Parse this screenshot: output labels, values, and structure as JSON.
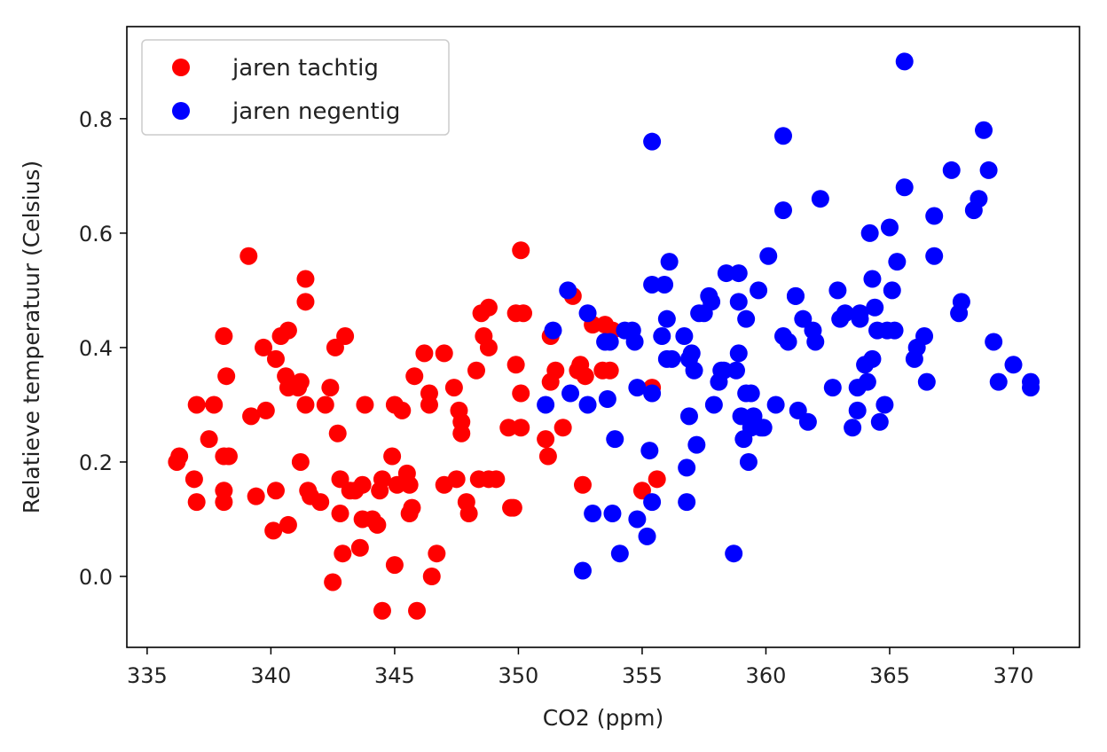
{
  "chart_data": {
    "type": "scatter",
    "title": "",
    "xlabel": "CO2 (ppm)",
    "ylabel": "Relatieve temperatuur (Celsius)",
    "xlim": [
      334.18,
      372.67
    ],
    "ylim": [
      -0.124,
      0.961
    ],
    "xticks": [
      335,
      340,
      345,
      350,
      355,
      360,
      365,
      370
    ],
    "xtick_labels": [
      "335",
      "340",
      "345",
      "350",
      "355",
      "360",
      "365",
      "370"
    ],
    "yticks": [
      0.0,
      0.2,
      0.4,
      0.6,
      0.8
    ],
    "ytick_labels": [
      "0.0",
      "0.2",
      "0.4",
      "0.6",
      "0.8"
    ],
    "grid": false,
    "legend_position": "top-left",
    "series": [
      {
        "name": "jaren tachtig",
        "color": "#ff0000",
        "points": [
          [
            336.2,
            0.2
          ],
          [
            336.3,
            0.21
          ],
          [
            336.9,
            0.17
          ],
          [
            337.0,
            0.13
          ],
          [
            337.0,
            0.3
          ],
          [
            337.7,
            0.3
          ],
          [
            337.5,
            0.24
          ],
          [
            338.1,
            0.42
          ],
          [
            338.2,
            0.35
          ],
          [
            338.1,
            0.21
          ],
          [
            338.3,
            0.21
          ],
          [
            338.1,
            0.15
          ],
          [
            338.1,
            0.13
          ],
          [
            339.1,
            0.56
          ],
          [
            339.2,
            0.28
          ],
          [
            339.4,
            0.14
          ],
          [
            339.7,
            0.4
          ],
          [
            339.8,
            0.29
          ],
          [
            340.1,
            0.08
          ],
          [
            340.2,
            0.15
          ],
          [
            340.2,
            0.38
          ],
          [
            340.4,
            0.42
          ],
          [
            340.6,
            0.35
          ],
          [
            340.7,
            0.33
          ],
          [
            340.7,
            0.09
          ],
          [
            340.7,
            0.43
          ],
          [
            341.1,
            0.33
          ],
          [
            341.2,
            0.2
          ],
          [
            341.2,
            0.34
          ],
          [
            341.4,
            0.52
          ],
          [
            341.4,
            0.48
          ],
          [
            341.4,
            0.3
          ],
          [
            341.5,
            0.15
          ],
          [
            341.6,
            0.14
          ],
          [
            342.0,
            0.13
          ],
          [
            342.2,
            0.3
          ],
          [
            342.4,
            0.33
          ],
          [
            342.6,
            0.4
          ],
          [
            342.7,
            0.25
          ],
          [
            342.8,
            0.17
          ],
          [
            343.0,
            0.42
          ],
          [
            342.8,
            0.11
          ],
          [
            342.9,
            0.04
          ],
          [
            342.5,
            -0.01
          ],
          [
            343.2,
            0.15
          ],
          [
            343.4,
            0.15
          ],
          [
            343.6,
            0.05
          ],
          [
            343.7,
            0.16
          ],
          [
            343.7,
            0.1
          ],
          [
            343.8,
            0.3
          ],
          [
            344.1,
            0.1
          ],
          [
            344.3,
            0.09
          ],
          [
            344.4,
            0.15
          ],
          [
            344.5,
            0.17
          ],
          [
            344.5,
            -0.06
          ],
          [
            344.9,
            0.21
          ],
          [
            345.0,
            0.3
          ],
          [
            345.0,
            0.02
          ],
          [
            345.1,
            0.16
          ],
          [
            345.3,
            0.29
          ],
          [
            345.5,
            0.18
          ],
          [
            345.6,
            0.16
          ],
          [
            345.6,
            0.11
          ],
          [
            345.8,
            0.35
          ],
          [
            345.7,
            0.12
          ],
          [
            345.9,
            -0.06
          ],
          [
            346.2,
            0.39
          ],
          [
            346.4,
            0.32
          ],
          [
            346.4,
            0.3
          ],
          [
            346.5,
            0.0
          ],
          [
            346.7,
            0.04
          ],
          [
            347.0,
            0.39
          ],
          [
            347.0,
            0.16
          ],
          [
            347.4,
            0.33
          ],
          [
            347.5,
            0.17
          ],
          [
            347.6,
            0.29
          ],
          [
            347.7,
            0.27
          ],
          [
            347.7,
            0.25
          ],
          [
            347.9,
            0.13
          ],
          [
            348.0,
            0.11
          ],
          [
            348.3,
            0.36
          ],
          [
            348.4,
            0.17
          ],
          [
            348.5,
            0.46
          ],
          [
            348.6,
            0.42
          ],
          [
            348.8,
            0.4
          ],
          [
            348.8,
            0.47
          ],
          [
            348.8,
            0.17
          ],
          [
            349.1,
            0.17
          ],
          [
            349.6,
            0.26
          ],
          [
            349.7,
            0.12
          ],
          [
            349.8,
            0.12
          ],
          [
            349.9,
            0.46
          ],
          [
            349.9,
            0.37
          ],
          [
            350.1,
            0.32
          ],
          [
            350.1,
            0.57
          ],
          [
            350.2,
            0.46
          ],
          [
            350.1,
            0.26
          ],
          [
            351.1,
            0.24
          ],
          [
            351.2,
            0.21
          ],
          [
            351.3,
            0.34
          ],
          [
            351.3,
            0.42
          ],
          [
            351.5,
            0.36
          ],
          [
            351.8,
            0.26
          ],
          [
            352.2,
            0.49
          ],
          [
            352.4,
            0.36
          ],
          [
            352.5,
            0.37
          ],
          [
            352.6,
            0.16
          ],
          [
            352.7,
            0.35
          ],
          [
            353.0,
            0.44
          ],
          [
            353.4,
            0.36
          ],
          [
            353.5,
            0.44
          ],
          [
            353.7,
            0.36
          ],
          [
            353.8,
            0.43
          ],
          [
            355.0,
            0.15
          ],
          [
            355.6,
            0.17
          ],
          [
            355.4,
            0.33
          ]
        ]
      },
      {
        "name": "jaren negentig",
        "color": "#0000ff",
        "points": [
          [
            351.1,
            0.3
          ],
          [
            351.4,
            0.43
          ],
          [
            352.0,
            0.5
          ],
          [
            352.1,
            0.32
          ],
          [
            352.6,
            0.01
          ],
          [
            352.8,
            0.46
          ],
          [
            352.8,
            0.3
          ],
          [
            353.0,
            0.11
          ],
          [
            353.5,
            0.41
          ],
          [
            353.6,
            0.31
          ],
          [
            353.7,
            0.41
          ],
          [
            353.8,
            0.11
          ],
          [
            353.9,
            0.24
          ],
          [
            354.1,
            0.04
          ],
          [
            354.3,
            0.43
          ],
          [
            354.6,
            0.43
          ],
          [
            354.7,
            0.41
          ],
          [
            354.8,
            0.1
          ],
          [
            354.8,
            0.33
          ],
          [
            355.2,
            0.07
          ],
          [
            355.3,
            0.22
          ],
          [
            355.4,
            0.76
          ],
          [
            355.4,
            0.51
          ],
          [
            355.4,
            0.32
          ],
          [
            355.4,
            0.13
          ],
          [
            355.8,
            0.42
          ],
          [
            355.9,
            0.51
          ],
          [
            356.0,
            0.45
          ],
          [
            356.0,
            0.38
          ],
          [
            356.1,
            0.55
          ],
          [
            356.2,
            0.38
          ],
          [
            356.7,
            0.42
          ],
          [
            356.8,
            0.19
          ],
          [
            356.8,
            0.13
          ],
          [
            356.9,
            0.38
          ],
          [
            356.9,
            0.28
          ],
          [
            357.0,
            0.39
          ],
          [
            357.1,
            0.36
          ],
          [
            357.2,
            0.23
          ],
          [
            357.3,
            0.46
          ],
          [
            357.5,
            0.46
          ],
          [
            357.7,
            0.49
          ],
          [
            357.8,
            0.48
          ],
          [
            357.9,
            0.3
          ],
          [
            358.1,
            0.34
          ],
          [
            358.2,
            0.36
          ],
          [
            358.3,
            0.36
          ],
          [
            358.4,
            0.53
          ],
          [
            358.7,
            0.04
          ],
          [
            358.8,
            0.36
          ],
          [
            358.9,
            0.53
          ],
          [
            358.9,
            0.39
          ],
          [
            358.9,
            0.48
          ],
          [
            359.0,
            0.28
          ],
          [
            359.1,
            0.24
          ],
          [
            359.2,
            0.32
          ],
          [
            359.2,
            0.45
          ],
          [
            359.3,
            0.2
          ],
          [
            359.4,
            0.32
          ],
          [
            359.4,
            0.26
          ],
          [
            359.5,
            0.28
          ],
          [
            359.7,
            0.5
          ],
          [
            359.8,
            0.26
          ],
          [
            359.9,
            0.26
          ],
          [
            360.1,
            0.56
          ],
          [
            360.4,
            0.3
          ],
          [
            360.7,
            0.77
          ],
          [
            360.7,
            0.64
          ],
          [
            360.7,
            0.42
          ],
          [
            360.9,
            0.41
          ],
          [
            361.2,
            0.49
          ],
          [
            361.2,
            0.49
          ],
          [
            361.3,
            0.29
          ],
          [
            361.5,
            0.45
          ],
          [
            361.7,
            0.27
          ],
          [
            361.9,
            0.43
          ],
          [
            362.0,
            0.41
          ],
          [
            362.2,
            0.66
          ],
          [
            362.7,
            0.33
          ],
          [
            362.9,
            0.5
          ],
          [
            363.0,
            0.45
          ],
          [
            363.2,
            0.46
          ],
          [
            363.5,
            0.26
          ],
          [
            363.7,
            0.33
          ],
          [
            363.7,
            0.29
          ],
          [
            363.8,
            0.45
          ],
          [
            363.8,
            0.46
          ],
          [
            364.0,
            0.37
          ],
          [
            364.1,
            0.34
          ],
          [
            364.2,
            0.6
          ],
          [
            364.3,
            0.38
          ],
          [
            364.3,
            0.52
          ],
          [
            364.4,
            0.47
          ],
          [
            364.5,
            0.43
          ],
          [
            364.6,
            0.27
          ],
          [
            364.8,
            0.3
          ],
          [
            364.9,
            0.43
          ],
          [
            365.0,
            0.61
          ],
          [
            365.1,
            0.5
          ],
          [
            365.3,
            0.55
          ],
          [
            365.2,
            0.43
          ],
          [
            365.6,
            0.9
          ],
          [
            365.6,
            0.68
          ],
          [
            366.0,
            0.38
          ],
          [
            366.1,
            0.4
          ],
          [
            366.4,
            0.42
          ],
          [
            366.5,
            0.34
          ],
          [
            366.8,
            0.56
          ],
          [
            366.8,
            0.63
          ],
          [
            367.5,
            0.71
          ],
          [
            367.8,
            0.46
          ],
          [
            367.9,
            0.48
          ],
          [
            368.4,
            0.64
          ],
          [
            368.6,
            0.66
          ],
          [
            368.8,
            0.78
          ],
          [
            369.0,
            0.71
          ],
          [
            369.2,
            0.41
          ],
          [
            369.4,
            0.34
          ],
          [
            370.0,
            0.37
          ],
          [
            370.7,
            0.34
          ],
          [
            370.7,
            0.33
          ]
        ]
      }
    ]
  }
}
